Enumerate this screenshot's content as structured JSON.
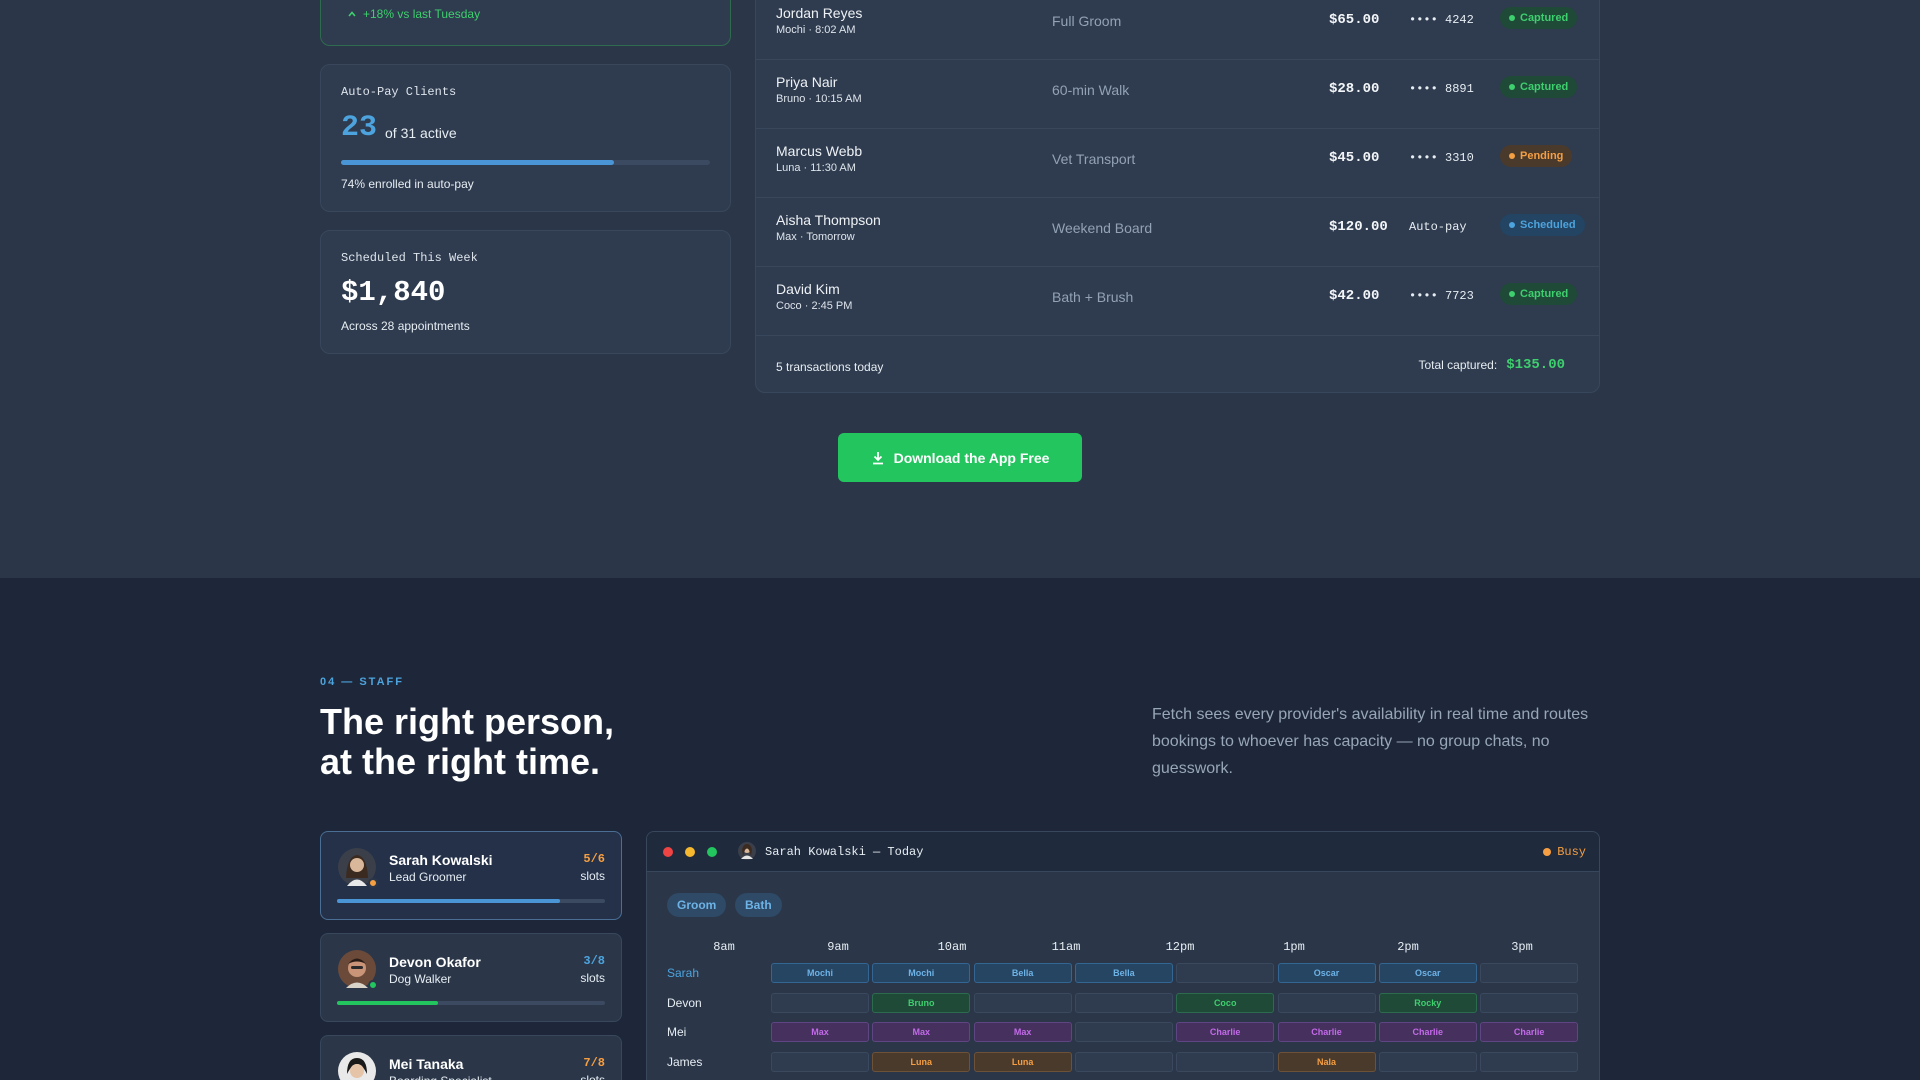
{
  "colors": {
    "accent": "#4da3dd",
    "success": "#22c55e",
    "warning": "#f59e42",
    "page_bg": "#2b3749",
    "section_bg": "#1d2739"
  },
  "trend": {
    "text": "+18% vs last Tuesday",
    "icon": "chevron-up-icon"
  },
  "autopay": {
    "label": "Auto-Pay Clients",
    "count": "23",
    "of_text": "of 31 active",
    "enrolled_fraction": 0.74,
    "note": "74% enrolled in auto-pay"
  },
  "scheduled": {
    "label": "Scheduled This Week",
    "amount": "$1,840",
    "note": "Across 28 appointments"
  },
  "transactions": [
    {
      "name": "Jordan Reyes",
      "sub": "Mochi · 8:02 AM",
      "service": "Full Groom",
      "amount": "$65.00",
      "card": "•••• 4242",
      "status": "Captured",
      "status_color": "#3ecf6e",
      "status_bg": "#1f4a38"
    },
    {
      "name": "Priya Nair",
      "sub": "Bruno · 10:15 AM",
      "service": "60-min Walk",
      "amount": "$28.00",
      "card": "•••• 8891",
      "status": "Captured",
      "status_color": "#3ecf6e",
      "status_bg": "#1f4a38"
    },
    {
      "name": "Marcus Webb",
      "sub": "Luna · 11:30 AM",
      "service": "Vet Transport",
      "amount": "$45.00",
      "card": "•••• 3310",
      "status": "Pending",
      "status_color": "#f59e42",
      "status_bg": "#4a3a2c"
    },
    {
      "name": "Aisha Thompson",
      "sub": "Max · Tomorrow",
      "service": "Weekend Board",
      "amount": "$120.00",
      "card": "Auto-pay",
      "status": "Scheduled",
      "status_color": "#4da3dd",
      "status_bg": "#234462"
    },
    {
      "name": "David Kim",
      "sub": "Coco · 2:45 PM",
      "service": "Bath + Brush",
      "amount": "$42.00",
      "card": "•••• 7723",
      "status": "Captured",
      "status_color": "#3ecf6e",
      "status_bg": "#1f4a38"
    }
  ],
  "tx_footer": {
    "count_text": "5 transactions today",
    "total_label": "Total captured:",
    "total_value": "$135.00"
  },
  "download_button": {
    "label": "Download the App Free",
    "icon": "download-icon"
  },
  "staff_section": {
    "eyebrow": "04 — STAFF",
    "headline_line1": "The right person,",
    "headline_line2": "at the right time.",
    "intro": "Fetch sees every provider's availability in real time and routes bookings to whoever has capacity — no group chats, no guesswork."
  },
  "staff": [
    {
      "name": "Sarah Kowalski",
      "role": "Lead Groomer",
      "slots": "5/6",
      "slots_label": "slots",
      "fill_fraction": 0.833,
      "slots_color": "#f59e42",
      "status_color": "#f59e42",
      "bar_color": "#4a95d6"
    },
    {
      "name": "Devon Okafor",
      "role": "Dog Walker",
      "slots": "3/8",
      "slots_label": "slots",
      "fill_fraction": 0.375,
      "slots_color": "#4da3dd",
      "status_color": "#22c55e",
      "bar_color": "#22c55e"
    },
    {
      "name": "Mei Tanaka",
      "role": "Boarding Specialist",
      "slots": "7/8",
      "slots_label": "slots",
      "fill_fraction": 0.875,
      "slots_color": "#f59e42",
      "status_color": "#f59e42",
      "bar_color": "#f59e42"
    }
  ],
  "schedule": {
    "title": "Sarah Kowalski — Today",
    "status": "Busy",
    "chips": [
      "Groom",
      "Bath"
    ],
    "times": [
      "8am",
      "9am",
      "10am",
      "11am",
      "12pm",
      "1pm",
      "2pm",
      "3pm"
    ],
    "rows": [
      {
        "label": "Sarah",
        "current": true,
        "cells": [
          "Mochi",
          "Mochi",
          "Bella",
          "Bella",
          "",
          "Oscar",
          "Oscar",
          ""
        ],
        "kind": "blue"
      },
      {
        "label": "Devon",
        "current": false,
        "cells": [
          "",
          "Bruno",
          "",
          "",
          "Coco",
          "",
          "Rocky",
          ""
        ],
        "kind": "green"
      },
      {
        "label": "Mei",
        "current": false,
        "cells": [
          "Max",
          "Max",
          "Max",
          "",
          "Charlie",
          "Charlie",
          "Charlie",
          "Charlie"
        ],
        "kind": "purple"
      },
      {
        "label": "James",
        "current": false,
        "cells": [
          "",
          "Luna",
          "Luna",
          "",
          "",
          "Nala",
          "",
          ""
        ],
        "kind": "orange"
      }
    ]
  }
}
